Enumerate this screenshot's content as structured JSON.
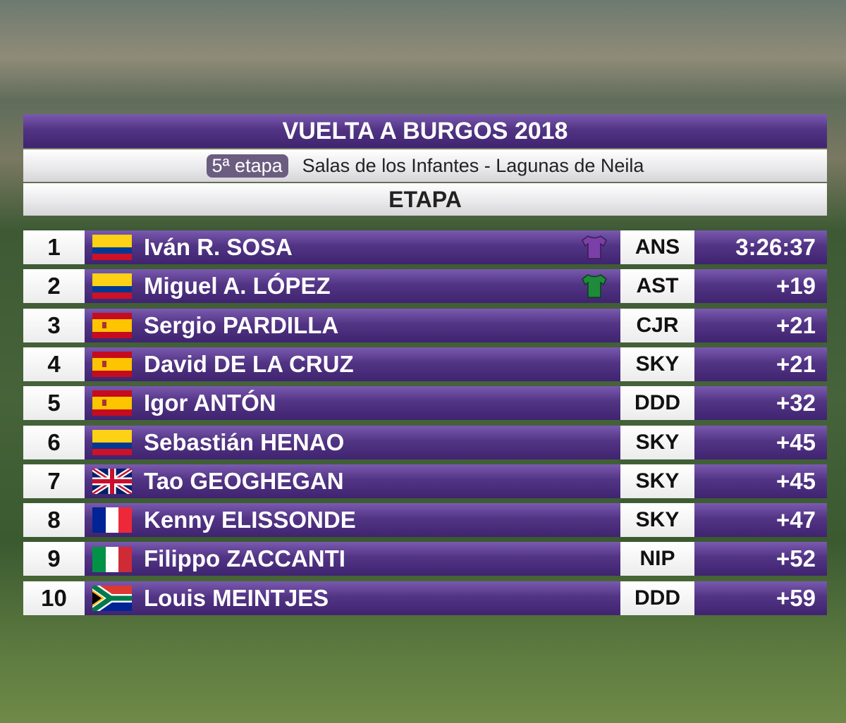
{
  "header": {
    "title": "VUELTA A BURGOS 2018",
    "stage": "5ª etapa",
    "route": "Salas de los Infantes - Lagunas de Neila",
    "section": "ETAPA"
  },
  "table": {
    "rows": [
      [
        "1",
        "Iván R. SOSA",
        "ANS",
        "3:26:37"
      ],
      [
        "2",
        "Miguel A. LÓPEZ",
        "AST",
        "+19"
      ],
      [
        "3",
        "Sergio PARDILLA",
        "CJR",
        "+21"
      ],
      [
        "4",
        "David DE LA CRUZ",
        "SKY",
        "+21"
      ],
      [
        "5",
        "Igor ANTÓN",
        "DDD",
        "+32"
      ],
      [
        "6",
        "Sebastián HENAO",
        "SKY",
        "+45"
      ],
      [
        "7",
        "Tao GEOGHEGAN",
        "SKY",
        "+45"
      ],
      [
        "8",
        "Kenny ELISSONDE",
        "SKY",
        "+47"
      ],
      [
        "9",
        "Filippo ZACCANTI",
        "NIP",
        "+52"
      ],
      [
        "10",
        "Louis MEINTJES",
        "DDD",
        "+59"
      ]
    ]
  }
}
